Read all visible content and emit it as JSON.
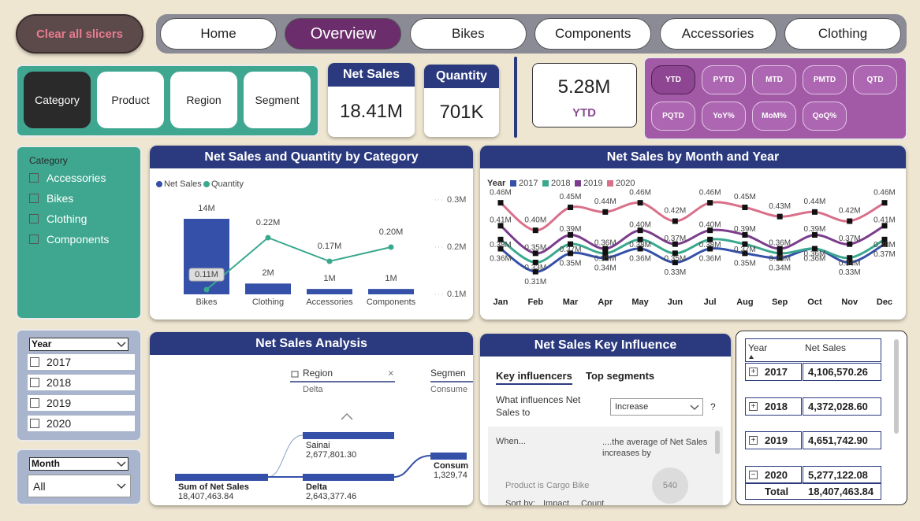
{
  "nav": {
    "clear": "Clear all slicers",
    "tabs": [
      "Home",
      "Overview",
      "Bikes",
      "Components",
      "Accessories",
      "Clothing"
    ]
  },
  "slicer_buttons": [
    "Category",
    "Product",
    "Region",
    "Segment"
  ],
  "kpis": {
    "net_sales": {
      "label": "Net Sales",
      "value": "18.41M"
    },
    "quantity": {
      "label": "Quantity",
      "value": "701K"
    },
    "ytd": {
      "value": "5.28M",
      "label": "YTD"
    }
  },
  "period_buttons": [
    "YTD",
    "PYTD",
    "MTD",
    "PMTD",
    "QTD",
    "PQTD",
    "YoY%",
    "MoM%",
    "QoQ%"
  ],
  "category_slicer": {
    "title": "Category",
    "items": [
      "Accessories",
      "Bikes",
      "Clothing",
      "Components"
    ]
  },
  "year_slicer": {
    "title": "Year",
    "items": [
      "2017",
      "2018",
      "2019",
      "2020"
    ]
  },
  "month_slicer": {
    "title": "Month",
    "value": "All"
  },
  "chart_data": [
    {
      "type": "bar",
      "title": "Net Sales and Quantity by Category",
      "categories": [
        "Bikes",
        "Clothing",
        "Accessories",
        "Components"
      ],
      "series": [
        {
          "name": "Net Sales",
          "color": "#3550a8",
          "values": [
            14000000,
            2000000,
            1000000,
            1000000
          ],
          "value_labels": [
            "14M",
            "2M",
            "1M",
            "1M"
          ]
        },
        {
          "name": "Quantity",
          "type": "line",
          "axis": "y2",
          "color": "#3aa88e",
          "values": [
            110000,
            220000,
            170000,
            200000
          ],
          "value_labels": [
            "0.11M",
            "0.22M",
            "0.17M",
            "0.20M"
          ]
        }
      ],
      "ylim": [
        0,
        17500000
      ],
      "y2lim": [
        100000,
        300000
      ],
      "y2ticks": [
        {
          "value": 100000,
          "label": "0.1M"
        },
        {
          "value": 200000,
          "label": "0.2M"
        },
        {
          "value": 300000,
          "label": "0.3M"
        }
      ],
      "legend": "top-left"
    },
    {
      "type": "line",
      "title": "Net Sales by Month and Year",
      "legend_title": "Year",
      "categories": [
        "Jan",
        "Feb",
        "Mar",
        "Apr",
        "May",
        "Jun",
        "Jul",
        "Aug",
        "Sep",
        "Oct",
        "Nov",
        "Dec"
      ],
      "series": [
        {
          "name": "2017",
          "color": "#3550a8",
          "values": [
            360000,
            310000,
            350000,
            340000,
            360000,
            330000,
            360000,
            350000,
            340000,
            360000,
            330000,
            370000
          ],
          "value_labels": [
            "0.36M",
            "0.31M",
            "0.35M",
            "0.34M",
            "0.36M",
            "0.33M",
            "0.36M",
            "0.35M",
            "0.34M",
            "0.36M",
            "0.33M",
            "0.37M"
          ]
        },
        {
          "name": "2018",
          "color": "#3aa88e",
          "values": [
            380000,
            330000,
            370000,
            350000,
            380000,
            350000,
            380000,
            370000,
            350000,
            360000,
            340000,
            380000
          ],
          "value_labels": [
            "0.38M",
            "0.33M",
            "0.37M",
            "0.35M",
            "0.38M",
            "0.35M",
            "0.38M",
            "0.37M",
            "0.35M",
            "0.36M",
            "0.34M",
            "0.38M"
          ]
        },
        {
          "name": "2019",
          "color": "#7b3d8c",
          "values": [
            410000,
            350000,
            390000,
            360000,
            400000,
            370000,
            400000,
            390000,
            360000,
            390000,
            370000,
            410000
          ],
          "value_labels": [
            "0.41M",
            "0.35M",
            "0.39M",
            "0.36M",
            "0.40M",
            "0.37M",
            "0.40M",
            "0.39M",
            "0.36M",
            "0.39M",
            "0.37M",
            "0.41M"
          ]
        },
        {
          "name": "2020",
          "color": "#d9708a",
          "values": [
            460000,
            400000,
            450000,
            440000,
            460000,
            420000,
            460000,
            450000,
            430000,
            440000,
            420000,
            460000
          ],
          "value_labels": [
            "0.46M",
            "0.40M",
            "0.45M",
            "0.44M",
            "0.46M",
            "0.42M",
            "0.46M",
            "0.45M",
            "0.43M",
            "0.44M",
            "0.42M",
            "0.46M"
          ]
        }
      ],
      "ylim": [
        300000,
        480000
      ],
      "markers": true,
      "legend": "top-left"
    }
  ],
  "decomposition": {
    "title": "Net Sales Analysis",
    "levels": [
      {
        "name": "Region",
        "sub": "Delta"
      },
      {
        "name": "Segmen",
        "sub": "Consume"
      }
    ],
    "root": {
      "label": "Sum of Net Sales",
      "value": "18,407,463.84"
    },
    "nodes": [
      {
        "label": "Sainai",
        "value": "2,677,801.30"
      },
      {
        "label": "Delta",
        "value": "2,643,377.46"
      },
      {
        "label": "Consum",
        "value": "1,329,74"
      }
    ]
  },
  "key_influencers": {
    "title": "Net Sales Key Influence",
    "tabs": [
      "Key influencers",
      "Top segments"
    ],
    "question": "What influences Net Sales to",
    "dropdown": "Increase",
    "help": "?",
    "when": "When...",
    "effect": "....the average of Net Sales increases by",
    "factor": "Product is Cargo Bike",
    "factor_value": "540",
    "sort": [
      "Sort by:",
      "Impact",
      "Count"
    ]
  },
  "table": {
    "headers": [
      "Year",
      "Net Sales"
    ],
    "rows": [
      [
        "2017",
        "4,106,570.26"
      ],
      [
        "2018",
        "4,372,028.60"
      ],
      [
        "2019",
        "4,651,742.90"
      ],
      [
        "2020",
        "5,277,122.08"
      ]
    ],
    "total": [
      "Total",
      "18,407,463.84"
    ]
  }
}
